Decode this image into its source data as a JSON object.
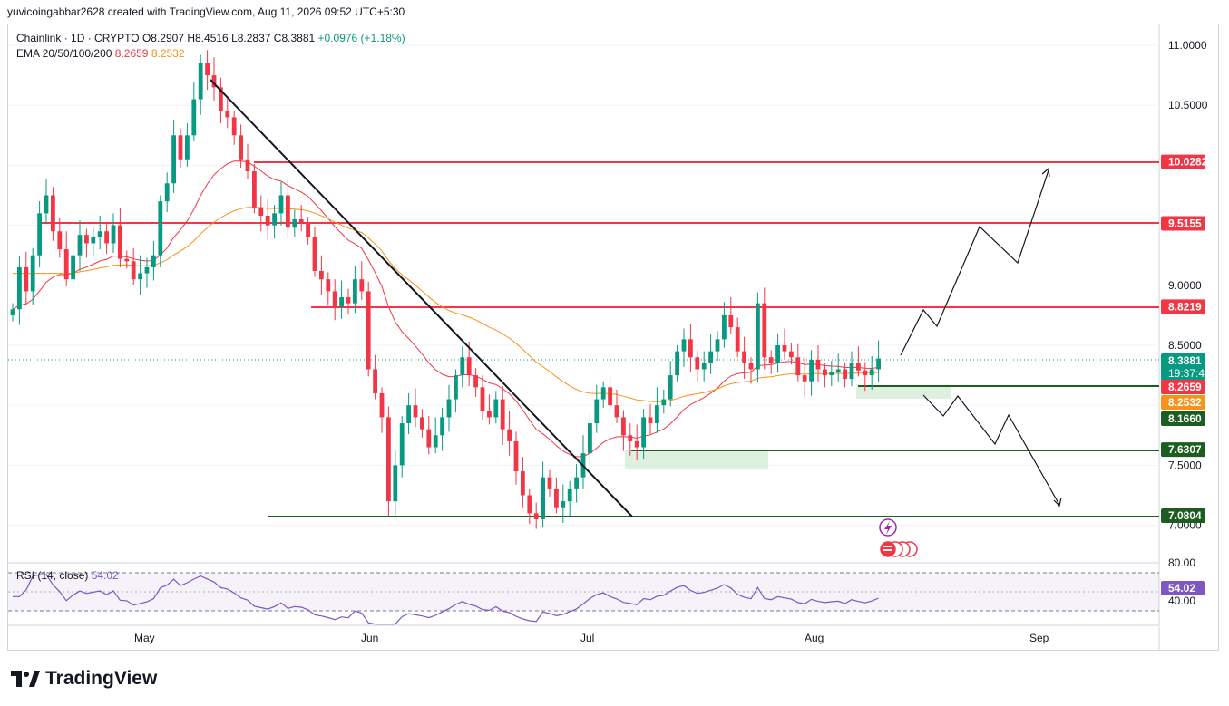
{
  "header": {
    "attribution": "yuvicoingabbar2628 created with TradingView.com, Aug 11, 2026 09:52 UTC+5:30"
  },
  "legend": {
    "symbol": "Chainlink · 1D · CRYPTO",
    "open": "O8.2907",
    "high": "H8.4516",
    "low": "L8.2837",
    "close": "C8.3881",
    "change": "+0.0976 (+1.18%)",
    "ema_label": "EMA 20/50/100/200",
    "ema_value_1": "8.2659",
    "ema_value_2": "8.2532"
  },
  "rsi": {
    "label": "RSI (14, close)",
    "value": "54.02",
    "axis_labels": [
      "80.00",
      "40.00"
    ]
  },
  "brand": {
    "name": "TradingView"
  },
  "colors": {
    "up": "#089981",
    "down": "#f23645",
    "ema20": "#f23645",
    "ema50": "#f7931a",
    "resistance": "#f23645",
    "support": "#1b5e20",
    "rsi": "#7e57c2"
  },
  "chart_data": {
    "type": "candlestick",
    "y_axis_ticks": [
      "11.0000",
      "10.5000",
      "9.0000",
      "8.5000",
      "7.5000",
      "7.0000"
    ],
    "ylim": [
      6.75,
      11.25
    ],
    "x_axis_labels": [
      "May",
      "Jun",
      "Jul",
      "Aug",
      "Sep"
    ],
    "price_tags": [
      {
        "label": "10.0282",
        "value": 10.0282,
        "kind": "resistance"
      },
      {
        "label": "9.5155",
        "value": 9.5155,
        "kind": "resistance"
      },
      {
        "label": "8.8219",
        "value": 8.8219,
        "kind": "resistance"
      },
      {
        "label": "8.3881",
        "sub": "19:37:45",
        "value": 8.3881,
        "kind": "last"
      },
      {
        "label": "8.2659",
        "value": 8.2659,
        "kind": "ema20"
      },
      {
        "label": "8.2532",
        "value": 8.2532,
        "kind": "ema50"
      },
      {
        "label": "8.1660",
        "value": 8.166,
        "kind": "support"
      },
      {
        "label": "7.6307",
        "value": 7.6307,
        "kind": "support"
      },
      {
        "label": "7.0804",
        "value": 7.0804,
        "kind": "support"
      }
    ],
    "closes": [
      8.8,
      9.15,
      8.95,
      9.25,
      9.6,
      9.75,
      9.45,
      9.3,
      9.05,
      9.25,
      9.42,
      9.35,
      9.4,
      9.45,
      9.35,
      9.5,
      9.22,
      9.2,
      9.05,
      9.1,
      9.15,
      9.25,
      9.7,
      9.85,
      10.25,
      10.05,
      10.25,
      10.55,
      10.85,
      10.75,
      10.65,
      10.45,
      10.4,
      10.25,
      10.05,
      9.95,
      9.65,
      9.58,
      9.5,
      9.6,
      9.75,
      9.48,
      9.55,
      9.52,
      9.4,
      9.12,
      9.05,
      8.95,
      8.82,
      8.9,
      8.85,
      9.05,
      8.95,
      8.3,
      8.1,
      7.9,
      7.2,
      7.5,
      7.85,
      8.0,
      7.9,
      7.8,
      7.65,
      7.75,
      7.9,
      8.05,
      8.25,
      8.4,
      8.25,
      8.15,
      7.95,
      7.9,
      8.05,
      7.8,
      7.7,
      7.45,
      7.25,
      7.1,
      7.05,
      7.4,
      7.3,
      7.15,
      7.2,
      7.3,
      7.4,
      7.6,
      7.85,
      8.05,
      8.15,
      8.0,
      7.9,
      7.75,
      7.7,
      7.65,
      7.9,
      7.85,
      8.0,
      8.05,
      8.25,
      8.45,
      8.55,
      8.4,
      8.3,
      8.35,
      8.45,
      8.55,
      8.75,
      8.65,
      8.45,
      8.35,
      8.3,
      8.85,
      8.4,
      8.35,
      8.5,
      8.45,
      8.4,
      8.25,
      8.2,
      8.38,
      8.3,
      8.25,
      8.28,
      8.3,
      8.22,
      8.35,
      8.29,
      8.25,
      8.3,
      8.39
    ]
  }
}
